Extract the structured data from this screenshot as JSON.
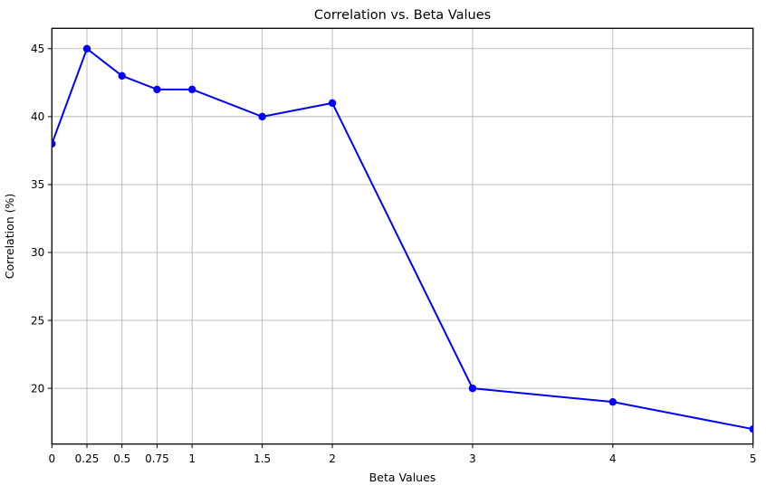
{
  "chart_data": {
    "type": "line",
    "title": "Correlation vs. Beta Values",
    "xlabel": "Beta Values",
    "ylabel": "Correlation (%)",
    "x": [
      0,
      0.25,
      0.5,
      0.75,
      1,
      1.5,
      2,
      3,
      4,
      5
    ],
    "y": [
      38,
      45,
      43,
      42,
      42,
      40,
      41,
      20,
      19,
      17
    ],
    "xticks": [
      0,
      0.25,
      0.5,
      0.75,
      1,
      1.5,
      2,
      3,
      4,
      5
    ],
    "xtick_labels": [
      "0",
      "0.25",
      "0.5",
      "0.75",
      "1",
      "1.5",
      "2",
      "3",
      "4",
      "5"
    ],
    "yticks": [
      20,
      25,
      30,
      35,
      40,
      45
    ],
    "ytick_labels": [
      "20",
      "25",
      "30",
      "35",
      "40",
      "45"
    ],
    "xlim": [
      0,
      5
    ],
    "ylim": [
      15.9,
      46.5
    ],
    "grid": true,
    "legend_position": "none",
    "colors": {
      "line": "#0000ff",
      "marker": "#0000ff",
      "grid": "#b4b4b4",
      "spine": "#000000",
      "background": "#ffffff"
    }
  }
}
